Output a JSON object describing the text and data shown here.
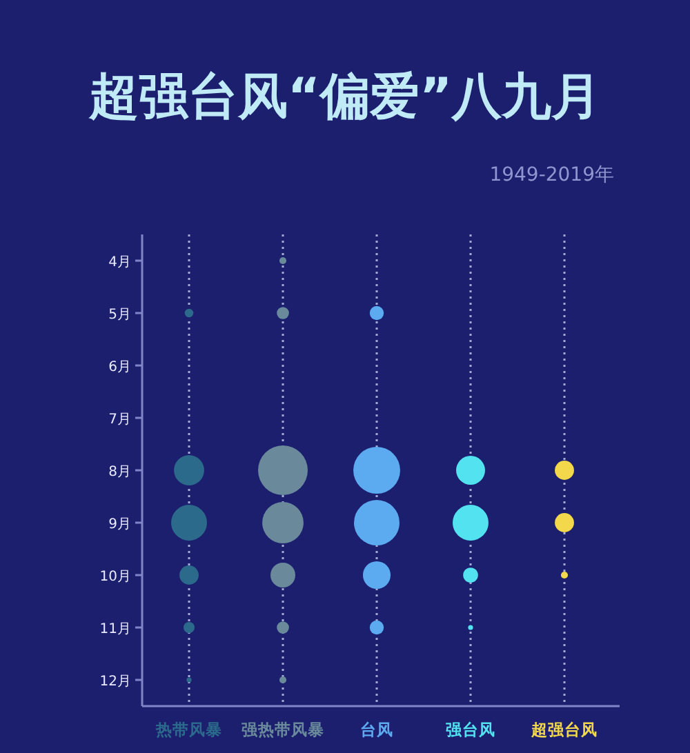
{
  "chart_data": {
    "type": "bubble",
    "title": "超强台风“偏爱”八九月",
    "annotations": [
      "1949-2019年"
    ],
    "categories": [
      "热带风暴",
      "强热带风暴",
      "台风",
      "强台风",
      "超强台风"
    ],
    "ylim": [
      12.5,
      3.5
    ],
    "yticks": [
      {
        "value": 4,
        "label": "4月"
      },
      {
        "value": 5,
        "label": "5月"
      },
      {
        "value": 6,
        "label": "6月"
      },
      {
        "value": 7,
        "label": "7月"
      },
      {
        "value": 8,
        "label": "8月"
      },
      {
        "value": 9,
        "label": "9月"
      },
      {
        "value": 10,
        "label": "10月"
      },
      {
        "value": 11,
        "label": "11月"
      },
      {
        "value": 12,
        "label": "12月"
      }
    ],
    "grid": "x",
    "line_style": "dotted",
    "series": [
      {
        "color": "#2c6a8c",
        "x": [
          "热带风暴",
          "热带风暴",
          "热带风暴",
          "热带风暴",
          "热带风暴",
          "热带风暴"
        ],
        "values": [
          5,
          8,
          9,
          10,
          11,
          12
        ],
        "sizes": [
          0.03,
          0.37,
          0.52,
          0.15,
          0.05,
          0.01
        ]
      },
      {
        "color": "#6a8a9c",
        "x": [
          "强热带风暴",
          "强热带风暴",
          "强热带风暴",
          "强热带风暴",
          "强热带风暴",
          "强热带风暴",
          "强热带风暴"
        ],
        "values": [
          4,
          5,
          8,
          9,
          10,
          11,
          12
        ],
        "sizes": [
          0.02,
          0.06,
          1,
          0.69,
          0.25,
          0.06,
          0.02
        ]
      },
      {
        "color": "#5caaf0",
        "x": [
          "台风",
          "台风",
          "台风",
          "台风",
          "台风"
        ],
        "values": [
          5,
          8,
          9,
          10,
          11
        ],
        "sizes": [
          0.08,
          0.89,
          0.84,
          0.31,
          0.08
        ]
      },
      {
        "color": "#52e2f0",
        "x": [
          "强台风",
          "强台风",
          "强台风",
          "强台风"
        ],
        "values": [
          8,
          9,
          10,
          11
        ],
        "sizes": [
          0.34,
          0.52,
          0.09,
          0.01
        ]
      },
      {
        "color": "#f2d84a",
        "x": [
          "超强台风",
          "超强台风",
          "超强台风"
        ],
        "values": [
          8,
          9,
          10
        ],
        "sizes": [
          0.15,
          0.15,
          0.02
        ]
      }
    ]
  }
}
